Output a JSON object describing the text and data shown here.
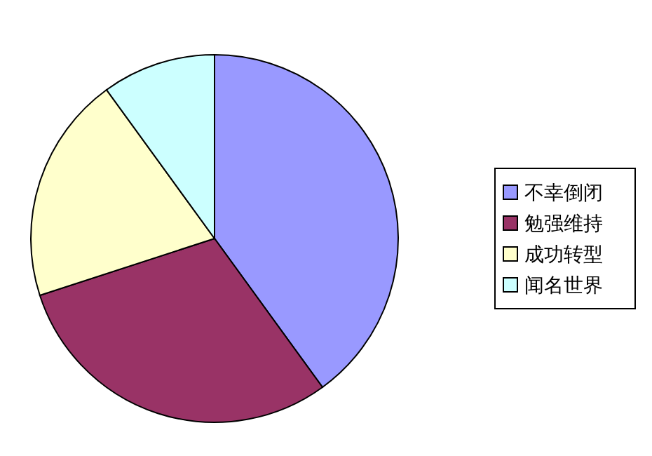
{
  "chart_data": {
    "type": "pie",
    "categories": [
      "不幸倒闭",
      "勉强维持",
      "成功转型",
      "闻名世界"
    ],
    "values": [
      40,
      30,
      20,
      10
    ],
    "colors": [
      "#9999ff",
      "#993366",
      "#ffffcc",
      "#ccffff"
    ],
    "legend": "right"
  }
}
